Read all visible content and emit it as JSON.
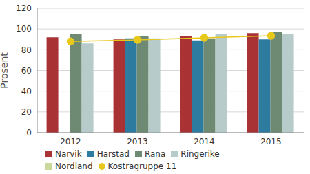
{
  "chart_data": {
    "type": "bar",
    "y_label": "Prosent",
    "categories": [
      "2012",
      "2013",
      "2014",
      "2015"
    ],
    "series": [
      {
        "name": "Narvik",
        "color": "#a83234",
        "values": [
          92,
          90,
          93,
          96
        ]
      },
      {
        "name": "Harstad",
        "color": "#2d7ca0",
        "values": [
          null,
          91,
          89,
          90
        ]
      },
      {
        "name": "Rana",
        "color": "#6e8a73",
        "values": [
          95,
          93,
          91,
          97
        ]
      },
      {
        "name": "Ringerike",
        "color": "#b8cbcb",
        "values": [
          86,
          91,
          95,
          95
        ]
      },
      {
        "name": "Nordland",
        "color": "#c9d99c",
        "values": [
          null,
          null,
          null,
          null
        ]
      },
      {
        "name": "Kostragruppe 11",
        "color": "#e8c81a",
        "type": "line",
        "marker": "circle",
        "values": [
          88,
          89.5,
          91.5,
          93.5
        ]
      }
    ],
    "ylim": [
      0,
      120
    ],
    "yticks": [
      0,
      20,
      40,
      60,
      80,
      100,
      120
    ],
    "grid": true,
    "legend": "bottom"
  }
}
